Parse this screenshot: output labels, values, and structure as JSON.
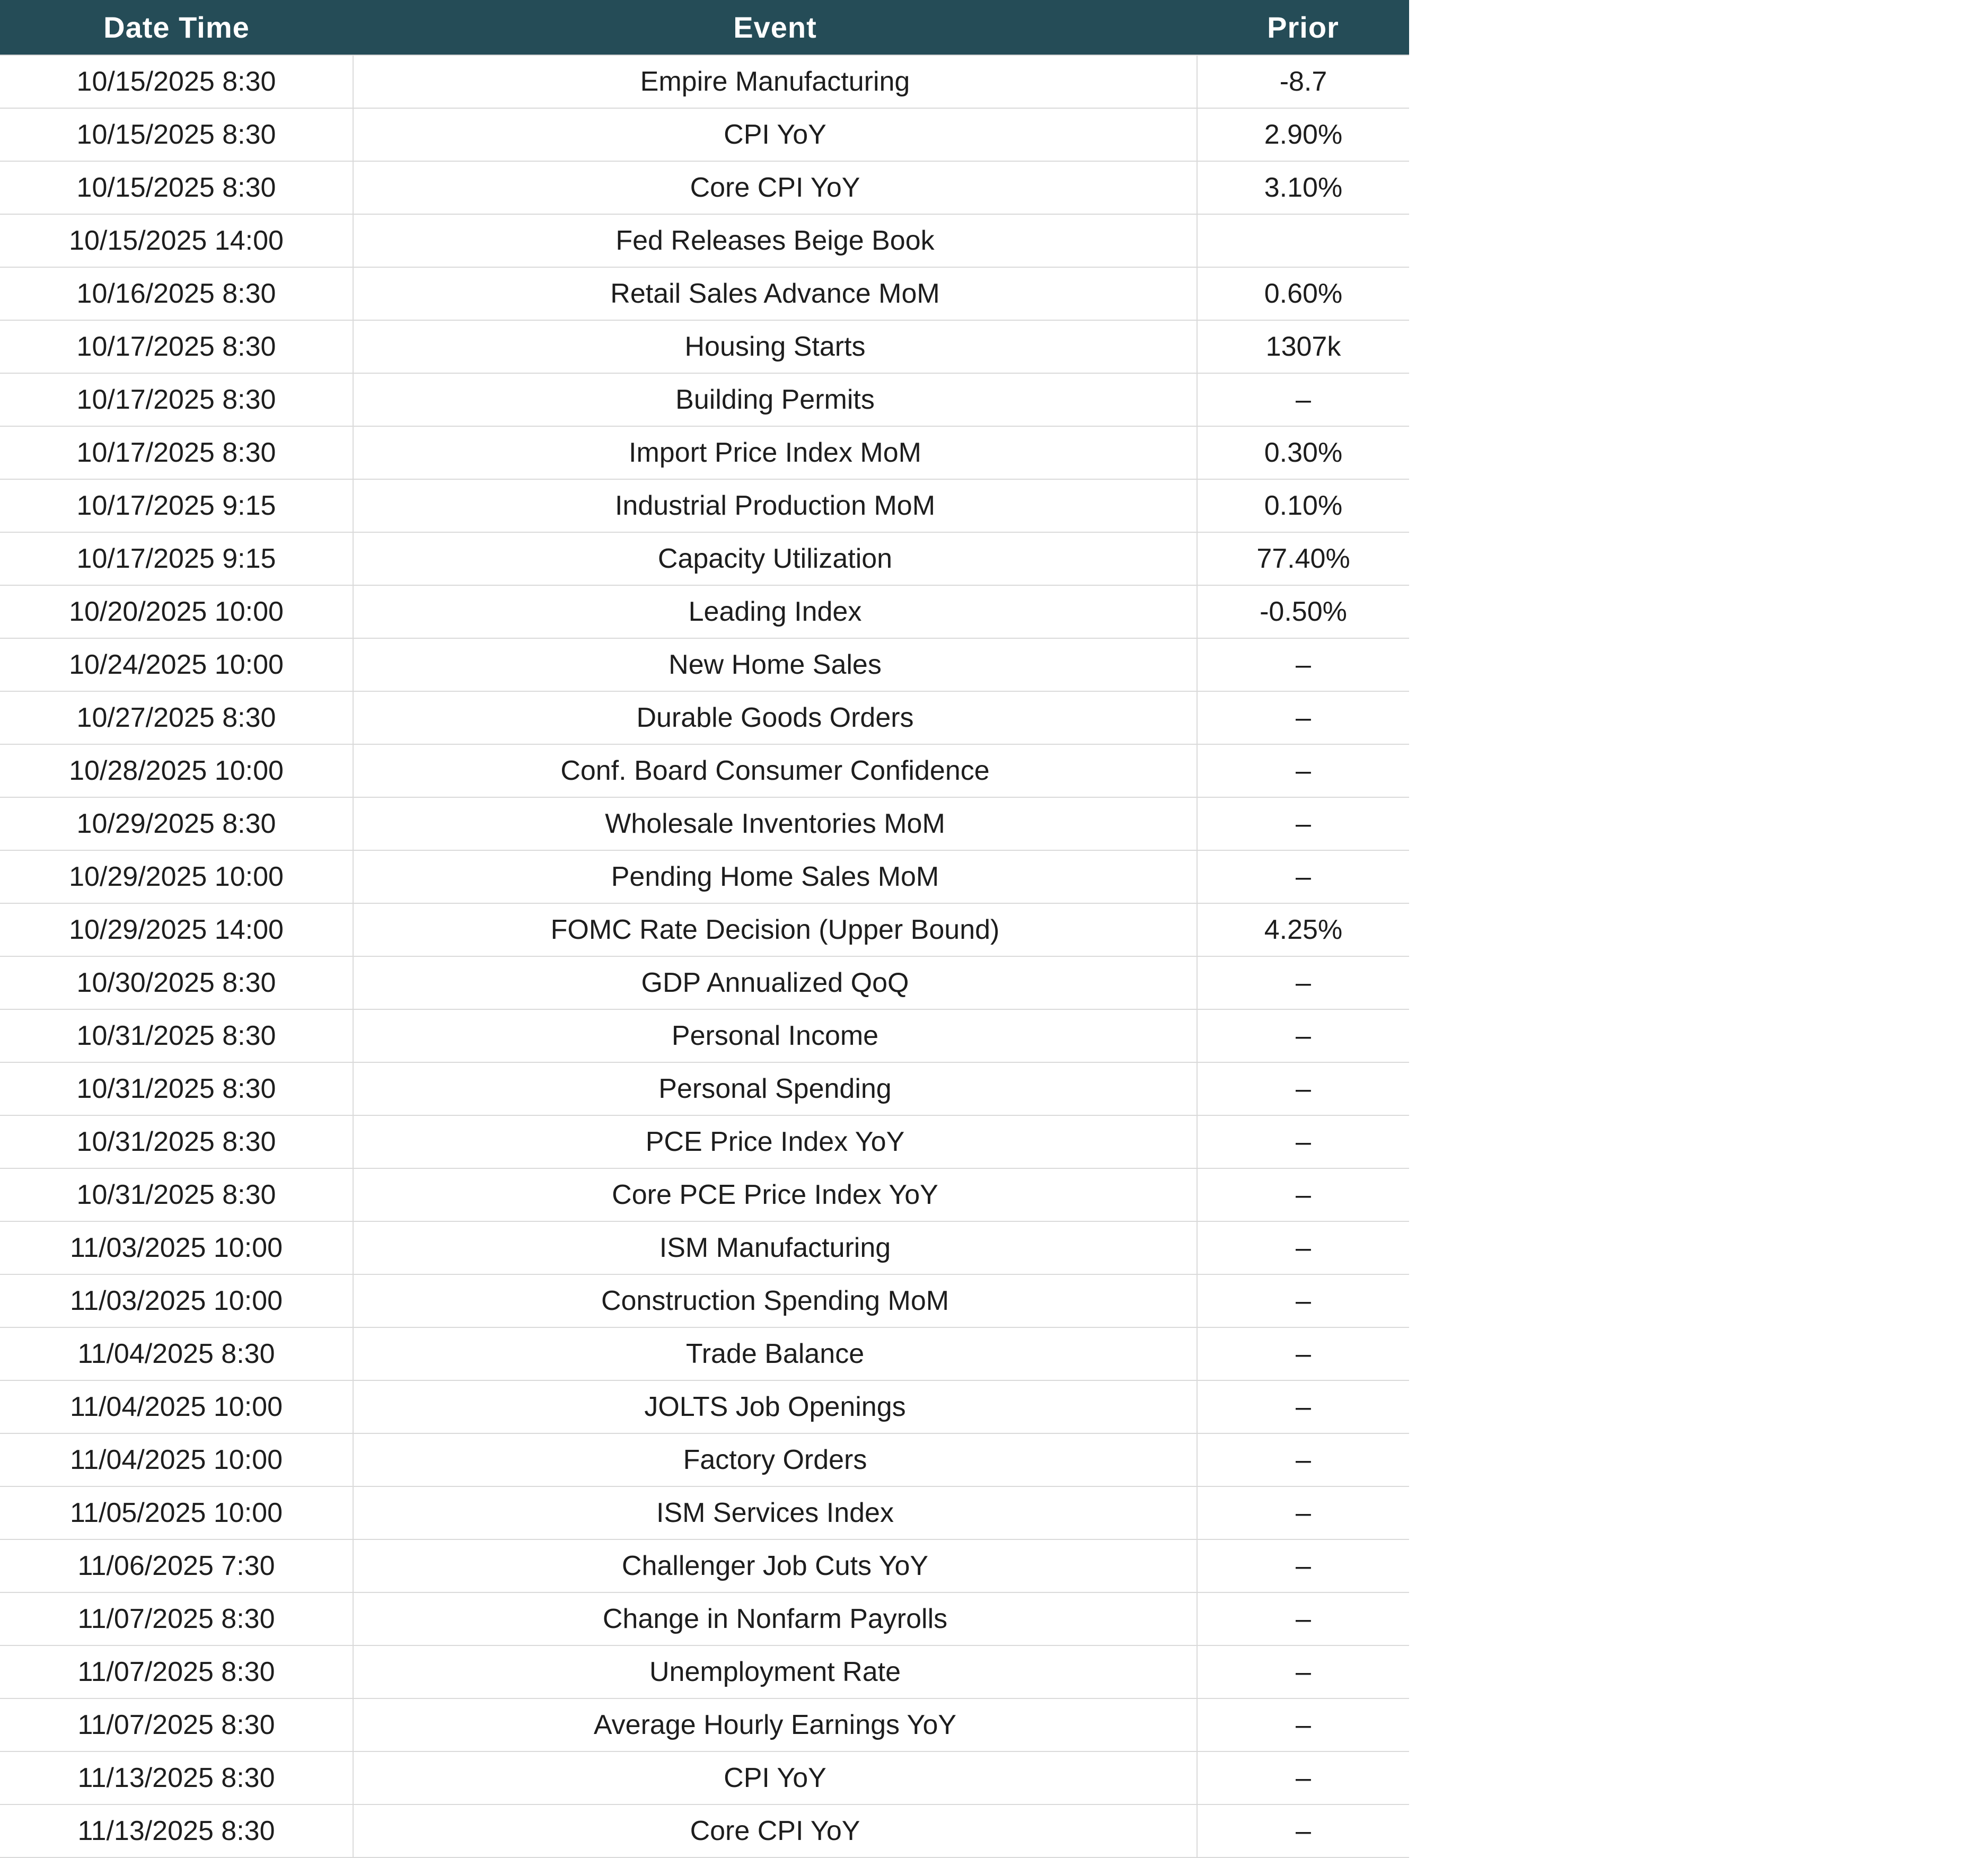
{
  "chart_data": {
    "type": "table",
    "columns": [
      "Date Time",
      "Event",
      "Prior"
    ],
    "rows": [
      [
        "10/15/2025 8:30",
        "Empire Manufacturing",
        "-8.7"
      ],
      [
        "10/15/2025 8:30",
        "CPI YoY",
        "2.90%"
      ],
      [
        "10/15/2025 8:30",
        "Core CPI YoY",
        "3.10%"
      ],
      [
        "10/15/2025 14:00",
        "Fed Releases Beige Book",
        ""
      ],
      [
        "10/16/2025 8:30",
        "Retail Sales Advance MoM",
        "0.60%"
      ],
      [
        "10/17/2025 8:30",
        "Housing Starts",
        "1307k"
      ],
      [
        "10/17/2025 8:30",
        "Building Permits",
        "–"
      ],
      [
        "10/17/2025 8:30",
        "Import Price Index MoM",
        "0.30%"
      ],
      [
        "10/17/2025 9:15",
        "Industrial Production MoM",
        "0.10%"
      ],
      [
        "10/17/2025 9:15",
        "Capacity Utilization",
        "77.40%"
      ],
      [
        "10/20/2025 10:00",
        "Leading Index",
        "-0.50%"
      ],
      [
        "10/24/2025 10:00",
        "New Home Sales",
        "–"
      ],
      [
        "10/27/2025 8:30",
        "Durable Goods Orders",
        "–"
      ],
      [
        "10/28/2025 10:00",
        "Conf. Board Consumer Confidence",
        "–"
      ],
      [
        "10/29/2025 8:30",
        "Wholesale Inventories MoM",
        "–"
      ],
      [
        "10/29/2025 10:00",
        "Pending Home Sales MoM",
        "–"
      ],
      [
        "10/29/2025 14:00",
        "FOMC Rate Decision (Upper Bound)",
        "4.25%"
      ],
      [
        "10/30/2025 8:30",
        "GDP Annualized QoQ",
        "–"
      ],
      [
        "10/31/2025 8:30",
        "Personal Income",
        "–"
      ],
      [
        "10/31/2025 8:30",
        "Personal Spending",
        "–"
      ],
      [
        "10/31/2025 8:30",
        "PCE Price Index YoY",
        "–"
      ],
      [
        "10/31/2025 8:30",
        "Core PCE Price Index YoY",
        "–"
      ],
      [
        "11/03/2025 10:00",
        "ISM Manufacturing",
        "–"
      ],
      [
        "11/03/2025 10:00",
        "Construction Spending MoM",
        "–"
      ],
      [
        "11/04/2025 8:30",
        "Trade Balance",
        "–"
      ],
      [
        "11/04/2025 10:00",
        "JOLTS Job Openings",
        "–"
      ],
      [
        "11/04/2025 10:00",
        "Factory Orders",
        "–"
      ],
      [
        "11/05/2025 10:00",
        "ISM Services Index",
        "–"
      ],
      [
        "11/06/2025 7:30",
        "Challenger Job Cuts YoY",
        "–"
      ],
      [
        "11/07/2025 8:30",
        "Change in Nonfarm Payrolls",
        "–"
      ],
      [
        "11/07/2025 8:30",
        "Unemployment Rate",
        "–"
      ],
      [
        "11/07/2025 8:30",
        "Average Hourly Earnings YoY",
        "–"
      ],
      [
        "11/13/2025 8:30",
        "CPI YoY",
        "–"
      ],
      [
        "11/13/2025 8:30",
        "Core CPI YoY",
        "–"
      ]
    ],
    "title": "",
    "layout_hints": {
      "grid": "on",
      "header_position": "top"
    }
  },
  "colors": {
    "header_bg": "#254C57",
    "header_text": "#FFFFFF",
    "body_text": "#1D1D1D",
    "grid_line": "#DADADA",
    "row_bg": "#FFFFFF"
  }
}
